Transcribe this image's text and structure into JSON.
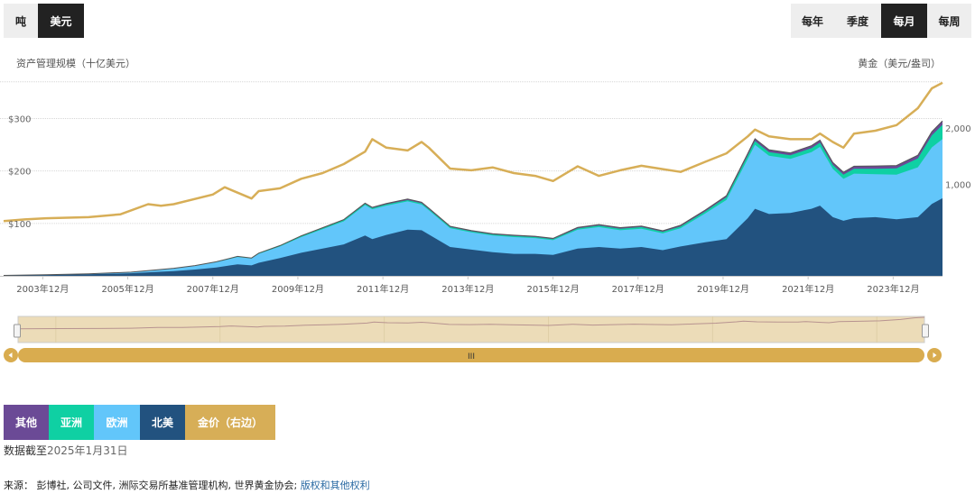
{
  "unit_toggle": {
    "items": [
      "吨",
      "美元"
    ],
    "active": 1
  },
  "freq_toggle": {
    "items": [
      "每年",
      "季度",
      "每月",
      "每周"
    ],
    "active": 2
  },
  "colors": {
    "north_america": "#22527f",
    "europe": "#62c6fa",
    "asia": "#0fd0a3",
    "other": "#6b4a96",
    "gold": "#d7ae57"
  },
  "chart_data": {
    "type": "area",
    "stacked": true,
    "left_axis_title": "资产管理规模（十亿美元）",
    "right_axis_title": "黄金（美元/盎司）",
    "left_ticks": [
      "$100",
      "$200",
      "$300"
    ],
    "left_tick_values": [
      100,
      200,
      300
    ],
    "right_ticks": [
      "1,000",
      "2,000"
    ],
    "right_tick_values": [
      1000,
      2000
    ],
    "x_ticks": [
      "2003年12月",
      "2005年12月",
      "2007年12月",
      "2009年12月",
      "2011年12月",
      "2013年12月",
      "2015年12月",
      "2017年12月",
      "2019年12月",
      "2021年12月",
      "2023年12月"
    ],
    "x_tick_values": [
      2003.92,
      2005.92,
      2007.92,
      2009.92,
      2011.92,
      2013.92,
      2015.92,
      2017.92,
      2019.92,
      2021.92,
      2023.92
    ],
    "x_range": [
      2003.0,
      2025.08
    ],
    "y_left_range": [
      0,
      392
    ],
    "y_right_range": [
      -620,
      3020
    ],
    "x": [
      2003.0,
      2004.0,
      2005.0,
      2006.0,
      2006.5,
      2007.0,
      2007.5,
      2008.0,
      2008.5,
      2008.83,
      2009.0,
      2009.5,
      2010.0,
      2010.5,
      2011.0,
      2011.5,
      2011.67,
      2012.0,
      2012.5,
      2012.83,
      2013.0,
      2013.5,
      2014.0,
      2014.5,
      2015.0,
      2015.5,
      2015.92,
      2016.5,
      2017.0,
      2017.5,
      2018.0,
      2018.5,
      2018.92,
      2019.5,
      2020.0,
      2020.5,
      2020.67,
      2021.0,
      2021.5,
      2022.0,
      2022.2,
      2022.5,
      2022.75,
      2023.0,
      2023.5,
      2024.0,
      2024.5,
      2024.83,
      2025.08
    ],
    "series": [
      {
        "name": "北美",
        "values": [
          0.5,
          1.5,
          3,
          5,
          7,
          9,
          12,
          16,
          22,
          20,
          25,
          34,
          44,
          52,
          60,
          77,
          70,
          78,
          88,
          87,
          79,
          55,
          50,
          45,
          42,
          42,
          40,
          52,
          55,
          52,
          55,
          49,
          56,
          64,
          70,
          110,
          128,
          118,
          120,
          128,
          134,
          112,
          105,
          110,
          112,
          108,
          112,
          137,
          148
        ]
      },
      {
        "name": "欧洲",
        "values": [
          0.3,
          0.5,
          1,
          2,
          3.5,
          5,
          7,
          10,
          14,
          13,
          17,
          22,
          30,
          37,
          44,
          58,
          57,
          56,
          54,
          49,
          46,
          36,
          33,
          32,
          32,
          30,
          28,
          36,
          38,
          35,
          35,
          32,
          35,
          55,
          75,
          113,
          122,
          111,
          103,
          108,
          112,
          92,
          80,
          85,
          82,
          85,
          95,
          108,
          113
        ]
      },
      {
        "name": "亚洲",
        "values": [
          0,
          0,
          0,
          0,
          0.2,
          0.3,
          0.5,
          0.7,
          0.8,
          0.8,
          1,
          1.2,
          1.5,
          1.8,
          2,
          2.2,
          2.2,
          2.3,
          2.4,
          2.4,
          2.3,
          2,
          2,
          2,
          2,
          2,
          2,
          2.5,
          2.8,
          3,
          3,
          3,
          3.2,
          4,
          5,
          6.5,
          7,
          7,
          7,
          7.5,
          8,
          7.5,
          8,
          9,
          10,
          12,
          17,
          23,
          27
        ]
      },
      {
        "name": "其他",
        "values": [
          0,
          0,
          0,
          0,
          0,
          0.1,
          0.1,
          0.2,
          0.3,
          0.3,
          0.4,
          0.5,
          0.8,
          1,
          1.2,
          1.5,
          1.5,
          1.8,
          2,
          2,
          1.8,
          1.5,
          1.5,
          1.5,
          1.5,
          1.5,
          1.5,
          2,
          2,
          2,
          2,
          2,
          2.2,
          2.5,
          3,
          4,
          4.5,
          4.5,
          4.5,
          4.8,
          5,
          4.8,
          4.8,
          5,
          5.5,
          5.5,
          6,
          7,
          7.5
        ]
      }
    ],
    "gold": {
      "name": "金价（右边）",
      "x": [
        2003.0,
        2003.5,
        2004.0,
        2005.0,
        2005.75,
        2006.4,
        2006.7,
        2007.0,
        2007.92,
        2008.2,
        2008.83,
        2009.0,
        2009.5,
        2010.0,
        2010.5,
        2011.0,
        2011.5,
        2011.67,
        2012.0,
        2012.5,
        2012.83,
        2013.0,
        2013.5,
        2014.0,
        2014.5,
        2015.0,
        2015.5,
        2015.92,
        2016.5,
        2017.0,
        2017.5,
        2018.0,
        2018.5,
        2018.92,
        2019.5,
        2020.0,
        2020.5,
        2020.67,
        2021.0,
        2021.5,
        2022.0,
        2022.2,
        2022.5,
        2022.75,
        2023.0,
        2023.5,
        2024.0,
        2024.5,
        2024.83,
        2025.08
      ],
      "values": [
        350,
        380,
        400,
        420,
        470,
        650,
        620,
        650,
        820,
        950,
        750,
        880,
        930,
        1100,
        1200,
        1360,
        1580,
        1800,
        1650,
        1600,
        1750,
        1650,
        1280,
        1250,
        1300,
        1200,
        1150,
        1060,
        1320,
        1150,
        1250,
        1330,
        1270,
        1220,
        1400,
        1550,
        1850,
        1970,
        1850,
        1800,
        1800,
        1900,
        1750,
        1650,
        1900,
        1950,
        2050,
        2350,
        2700,
        2800
      ]
    }
  },
  "navigator": {
    "handle_label": "III"
  },
  "legend": {
    "items": [
      {
        "label": "其他",
        "color": "#6b4a96"
      },
      {
        "label": "亚洲",
        "color": "#0fd0a3"
      },
      {
        "label": "欧洲",
        "color": "#62c6fa"
      },
      {
        "label": "北美",
        "color": "#22527f"
      },
      {
        "label": "金价（右边）",
        "color": "#d7ae57"
      }
    ]
  },
  "as_of": {
    "prefix": "数据截至",
    "date": "2025年1月31日"
  },
  "source": {
    "prefix": "来源：",
    "text": " 彭博社, 公司文件, 洲际交易所基准管理机构, 世界黄金协会; ",
    "link": "版权和其他权利"
  }
}
